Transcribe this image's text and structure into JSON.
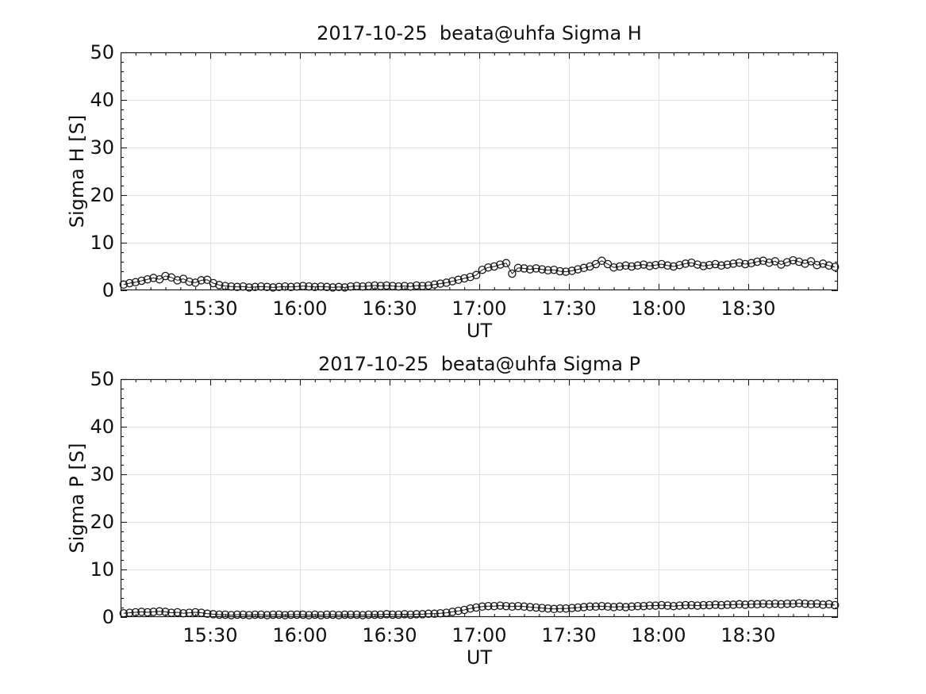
{
  "style": {
    "background": "#ffffff",
    "text_color": "#111111",
    "axis_color": "#1a1a1a",
    "grid_color": "#e0e0e0",
    "marker_color": "#1a1a1a"
  },
  "chart_data": [
    {
      "type": "line",
      "title": "2017-10-25  beata@uhfa Sigma H",
      "xlabel": "UT",
      "ylabel": "Sigma H [S]",
      "ylim": [
        0,
        50
      ],
      "yticks": [
        0,
        10,
        20,
        30,
        40,
        50
      ],
      "y_minor_step": 2,
      "x_minor_step_minutes": 5,
      "x_range_minutes": [
        0,
        240
      ],
      "x_range_labels": [
        "15:00",
        "19:00"
      ],
      "xticks": [
        {
          "m": 30,
          "label": "15:30"
        },
        {
          "m": 60,
          "label": "16:00"
        },
        {
          "m": 90,
          "label": "16:30"
        },
        {
          "m": 120,
          "label": "17:00"
        },
        {
          "m": 150,
          "label": "17:30"
        },
        {
          "m": 180,
          "label": "18:00"
        },
        {
          "m": 210,
          "label": "18:30"
        }
      ],
      "grid": true,
      "legend": false,
      "marker": "open-circle",
      "x_unit": "minutes after 15:00 UT",
      "x": [
        1,
        3,
        5,
        7,
        9,
        11,
        13,
        15,
        17,
        19,
        21,
        23,
        25,
        27,
        29,
        31,
        33,
        35,
        37,
        39,
        41,
        43,
        45,
        47,
        49,
        51,
        53,
        55,
        57,
        59,
        61,
        63,
        65,
        67,
        69,
        71,
        73,
        75,
        77,
        79,
        81,
        83,
        85,
        87,
        89,
        91,
        93,
        95,
        97,
        99,
        101,
        103,
        105,
        107,
        109,
        111,
        113,
        115,
        117,
        119,
        121,
        123,
        125,
        127,
        129,
        131,
        133,
        135,
        137,
        139,
        141,
        143,
        145,
        147,
        149,
        151,
        153,
        155,
        157,
        159,
        161,
        163,
        165,
        167,
        169,
        171,
        173,
        175,
        177,
        179,
        181,
        183,
        185,
        187,
        189,
        191,
        193,
        195,
        197,
        199,
        201,
        203,
        205,
        207,
        209,
        211,
        213,
        215,
        217,
        219,
        221,
        223,
        225,
        227,
        229,
        231,
        233,
        235,
        237,
        239
      ],
      "values": [
        1.2,
        1.5,
        1.7,
        2.0,
        2.3,
        2.6,
        2.3,
        3.0,
        2.7,
        2.1,
        2.4,
        1.8,
        1.6,
        2.1,
        2.2,
        1.5,
        1.1,
        0.9,
        0.8,
        0.7,
        0.8,
        0.6,
        0.7,
        0.8,
        0.7,
        0.6,
        0.7,
        0.8,
        0.7,
        0.8,
        0.9,
        0.8,
        0.7,
        0.8,
        0.7,
        0.6,
        0.7,
        0.6,
        0.8,
        0.9,
        0.8,
        0.9,
        1.0,
        0.9,
        1.0,
        0.9,
        0.8,
        0.9,
        0.8,
        1.0,
        0.9,
        1.0,
        1.2,
        1.4,
        1.6,
        1.9,
        2.2,
        2.5,
        2.8,
        3.2,
        4.3,
        4.8,
        5.0,
        5.4,
        5.7,
        3.5,
        4.7,
        4.6,
        4.4,
        4.6,
        4.4,
        4.2,
        4.3,
        4.0,
        3.9,
        4.1,
        4.4,
        4.7,
        5.0,
        5.5,
        6.2,
        5.5,
        4.8,
        5.0,
        5.2,
        5.0,
        5.2,
        5.4,
        5.1,
        5.3,
        5.5,
        5.2,
        5.0,
        5.3,
        5.6,
        5.8,
        5.4,
        5.1,
        5.3,
        5.5,
        5.2,
        5.4,
        5.6,
        5.8,
        5.5,
        5.7,
        6.0,
        6.2,
        5.8,
        6.1,
        5.4,
        5.9,
        6.3,
        6.0,
        5.6,
        6.1,
        5.3,
        5.6,
        5.2,
        4.9
      ]
    },
    {
      "type": "line",
      "title": "2017-10-25  beata@uhfa Sigma P",
      "xlabel": "UT",
      "ylabel": "Sigma P [S]",
      "ylim": [
        0,
        50
      ],
      "yticks": [
        0,
        10,
        20,
        30,
        40,
        50
      ],
      "y_minor_step": 2,
      "x_minor_step_minutes": 5,
      "x_range_minutes": [
        0,
        240
      ],
      "x_range_labels": [
        "15:00",
        "19:00"
      ],
      "xticks": [
        {
          "m": 30,
          "label": "15:30"
        },
        {
          "m": 60,
          "label": "16:00"
        },
        {
          "m": 90,
          "label": "16:30"
        },
        {
          "m": 120,
          "label": "17:00"
        },
        {
          "m": 150,
          "label": "17:30"
        },
        {
          "m": 180,
          "label": "18:00"
        },
        {
          "m": 210,
          "label": "18:30"
        }
      ],
      "grid": true,
      "legend": false,
      "marker": "open-circle",
      "x_unit": "minutes after 15:00 UT",
      "x": [
        1,
        3,
        5,
        7,
        9,
        11,
        13,
        15,
        17,
        19,
        21,
        23,
        25,
        27,
        29,
        31,
        33,
        35,
        37,
        39,
        41,
        43,
        45,
        47,
        49,
        51,
        53,
        55,
        57,
        59,
        61,
        63,
        65,
        67,
        69,
        71,
        73,
        75,
        77,
        79,
        81,
        83,
        85,
        87,
        89,
        91,
        93,
        95,
        97,
        99,
        101,
        103,
        105,
        107,
        109,
        111,
        113,
        115,
        117,
        119,
        121,
        123,
        125,
        127,
        129,
        131,
        133,
        135,
        137,
        139,
        141,
        143,
        145,
        147,
        149,
        151,
        153,
        155,
        157,
        159,
        161,
        163,
        165,
        167,
        169,
        171,
        173,
        175,
        177,
        179,
        181,
        183,
        185,
        187,
        189,
        191,
        193,
        195,
        197,
        199,
        201,
        203,
        205,
        207,
        209,
        211,
        213,
        215,
        217,
        219,
        221,
        223,
        225,
        227,
        229,
        231,
        233,
        235,
        237,
        239
      ],
      "values": [
        0.8,
        0.9,
        1.0,
        1.1,
        1.0,
        1.1,
        1.2,
        1.1,
        0.9,
        1.0,
        0.8,
        0.9,
        1.0,
        0.9,
        0.7,
        0.6,
        0.5,
        0.5,
        0.4,
        0.5,
        0.5,
        0.4,
        0.5,
        0.5,
        0.4,
        0.5,
        0.5,
        0.4,
        0.5,
        0.5,
        0.5,
        0.4,
        0.5,
        0.4,
        0.5,
        0.5,
        0.4,
        0.5,
        0.5,
        0.5,
        0.4,
        0.5,
        0.5,
        0.5,
        0.6,
        0.5,
        0.5,
        0.6,
        0.5,
        0.6,
        0.6,
        0.7,
        0.7,
        0.8,
        0.9,
        1.1,
        1.3,
        1.5,
        1.8,
        2.0,
        2.2,
        2.3,
        2.3,
        2.4,
        2.3,
        2.2,
        2.3,
        2.2,
        2.1,
        2.0,
        1.9,
        1.8,
        1.7,
        1.8,
        1.8,
        1.9,
        2.0,
        2.1,
        2.2,
        2.2,
        2.3,
        2.2,
        2.1,
        2.2,
        2.1,
        2.2,
        2.3,
        2.3,
        2.4,
        2.4,
        2.5,
        2.4,
        2.3,
        2.4,
        2.5,
        2.5,
        2.4,
        2.5,
        2.5,
        2.6,
        2.5,
        2.6,
        2.6,
        2.7,
        2.6,
        2.7,
        2.7,
        2.8,
        2.7,
        2.8,
        2.7,
        2.8,
        2.8,
        2.9,
        2.8,
        2.7,
        2.8,
        2.6,
        2.7,
        2.5
      ]
    }
  ]
}
